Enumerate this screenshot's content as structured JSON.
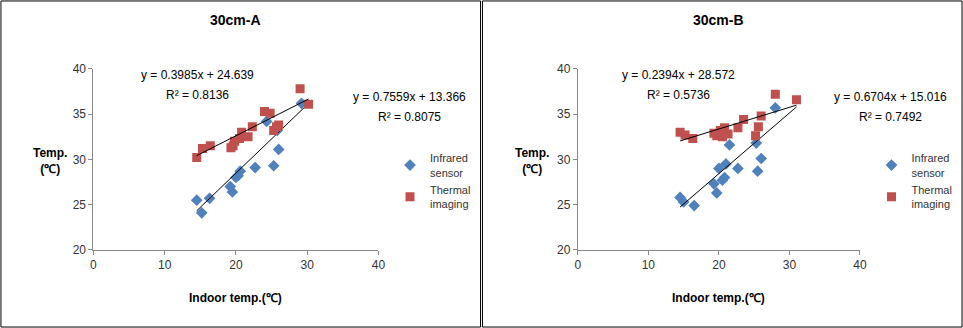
{
  "chart_data": [
    {
      "type": "scatter",
      "title": "30cm-A",
      "x_label": "Indoor temp.(℃)",
      "y_label": "Temp.\n(℃)",
      "xlim": [
        0,
        40
      ],
      "xticks": [
        0,
        10,
        20,
        30,
        40
      ],
      "ylim": [
        20,
        40
      ],
      "yticks": [
        20,
        25,
        30,
        35,
        40
      ],
      "grid": false,
      "legend": "right",
      "series": [
        {
          "name": "Infrared sensor",
          "color": "#4F81BD",
          "marker": "diamond",
          "x": [
            14.5,
            15.2,
            16.3,
            19.2,
            19.5,
            20.0,
            20.3,
            20.6,
            22.7,
            24.3,
            25.3,
            25.8,
            26.0,
            29.2
          ],
          "values": [
            25.5,
            24.1,
            25.7,
            27.0,
            26.4,
            28.0,
            28.2,
            28.7,
            29.1,
            34.2,
            29.3,
            33.2,
            31.1,
            36.2
          ],
          "trendline": {
            "equation": "y = 0.7559x + 13.366",
            "r2_label": "R² = 0.8075",
            "slope": 0.7559,
            "intercept": 13.366,
            "r2": 0.8075,
            "x_range": [
              14.5,
              30.2
            ]
          }
        },
        {
          "name": "Thermal imaging",
          "color": "#C0504D",
          "marker": "square",
          "x": [
            14.5,
            15.3,
            16.4,
            19.3,
            19.6,
            19.8,
            20.5,
            20.8,
            21.7,
            22.3,
            24.0,
            24.8,
            25.3,
            25.7,
            26.0,
            29.0,
            30.2
          ],
          "values": [
            30.2,
            31.2,
            31.5,
            31.3,
            31.5,
            32.0,
            32.3,
            33.0,
            32.5,
            33.6,
            35.3,
            35.1,
            33.2,
            33.6,
            33.8,
            37.8,
            36.1
          ],
          "trendline": {
            "equation": "y = 0.3985x + 24.639",
            "r2_label": "R² = 0.8136",
            "slope": 0.3985,
            "intercept": 24.639,
            "r2": 0.8136,
            "x_range": [
              14.5,
              30.2
            ]
          }
        }
      ]
    },
    {
      "type": "scatter",
      "title": "30cm-B",
      "x_label": "Indoor temp.(℃)",
      "y_label": "Temp.\n(℃)",
      "xlim": [
        0,
        40
      ],
      "xticks": [
        0,
        10,
        20,
        30,
        40
      ],
      "ylim": [
        20,
        40
      ],
      "yticks": [
        20,
        25,
        30,
        35,
        40
      ],
      "grid": false,
      "legend": "right",
      "series": [
        {
          "name": "Infrared sensor",
          "color": "#4F81BD",
          "marker": "diamond",
          "x": [
            14.5,
            15.0,
            16.5,
            19.3,
            19.7,
            20.0,
            20.5,
            20.8,
            21.0,
            21.5,
            22.7,
            25.3,
            25.5,
            26.0,
            28.0
          ],
          "values": [
            25.8,
            25.3,
            24.9,
            27.3,
            26.3,
            29.0,
            27.7,
            28.0,
            29.5,
            31.6,
            29.0,
            31.8,
            28.7,
            30.1,
            35.7
          ],
          "trendline": {
            "equation": "y = 0.6704x + 15.016",
            "r2_label": "R² = 0.7492",
            "slope": 0.6704,
            "intercept": 15.016,
            "r2": 0.7492,
            "x_range": [
              14.5,
              31.0
            ]
          }
        },
        {
          "name": "Thermal imaging",
          "color": "#C0504D",
          "marker": "square",
          "x": [
            14.5,
            15.2,
            16.3,
            19.3,
            19.7,
            20.2,
            20.5,
            20.8,
            21.3,
            22.7,
            23.5,
            25.2,
            25.6,
            26.0,
            28.0,
            31.0
          ],
          "values": [
            33.0,
            32.7,
            32.3,
            32.9,
            32.6,
            33.2,
            32.5,
            33.5,
            32.8,
            33.5,
            34.4,
            32.6,
            33.6,
            34.8,
            37.2,
            36.6
          ],
          "trendline": {
            "equation": "y = 0.2394x + 28.572",
            "r2_label": "R² = 0.5736",
            "slope": 0.2394,
            "intercept": 28.572,
            "r2": 0.5736,
            "x_range": [
              14.5,
              31.0
            ]
          }
        }
      ]
    }
  ]
}
